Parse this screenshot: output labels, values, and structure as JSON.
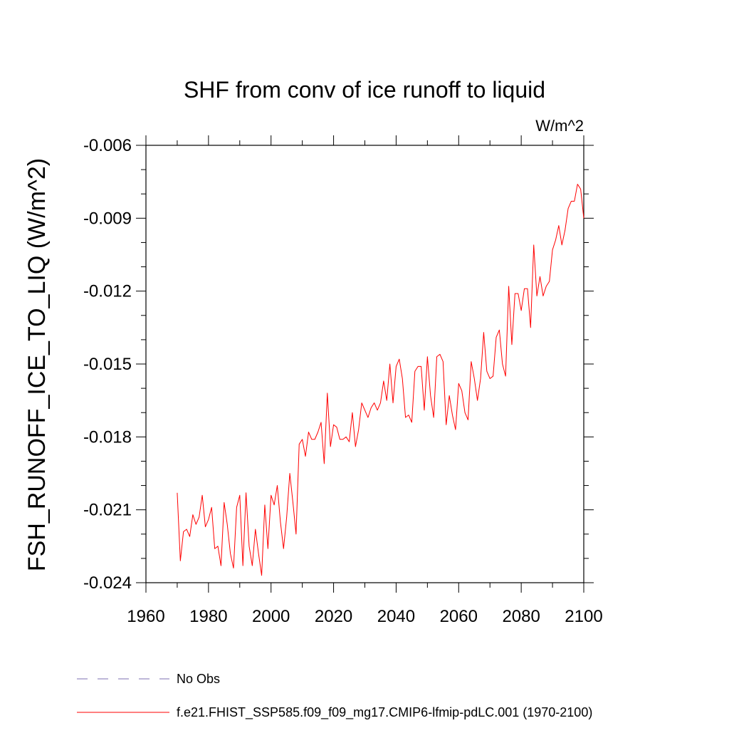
{
  "chart_data": {
    "type": "line",
    "title": "SHF from conv of ice runoff to liquid",
    "units": "W/m^2",
    "xlabel": "",
    "ylabel": "FSH_RUNOFF_ICE_TO_LIQ  (W/m^2)",
    "xlim": [
      1960,
      2100
    ],
    "ylim": [
      -0.024,
      -0.006
    ],
    "x_ticks": [
      1960,
      1980,
      2000,
      2020,
      2040,
      2060,
      2080,
      2100
    ],
    "x_tick_labels": [
      "1960",
      "1980",
      "2000",
      "2020",
      "2040",
      "2060",
      "2080",
      "2100"
    ],
    "y_ticks": [
      -0.024,
      -0.021,
      -0.018,
      -0.015,
      -0.012,
      -0.009,
      -0.006
    ],
    "y_tick_labels": [
      "-0.024",
      "-0.021",
      "-0.018",
      "-0.015",
      "-0.012",
      "-0.009",
      "-0.006"
    ],
    "grid": false,
    "legend_position": "bottom-left",
    "series": [
      {
        "name": "f.e21.FHIST_SSP585.f09_f09_mg17.CMIP6-lfmip-pdLC.001 (1970-2100)",
        "color": "#ff0000",
        "style": "solid",
        "x_start": 1970,
        "x_step": 1,
        "values": [
          -0.0203,
          -0.0231,
          -0.0219,
          -0.0218,
          -0.0221,
          -0.0212,
          -0.0216,
          -0.0213,
          -0.0204,
          -0.0217,
          -0.0214,
          -0.0209,
          -0.0226,
          -0.0225,
          -0.0233,
          -0.0207,
          -0.0216,
          -0.0228,
          -0.0234,
          -0.0209,
          -0.0204,
          -0.0233,
          -0.0203,
          -0.0225,
          -0.0233,
          -0.0218,
          -0.0228,
          -0.0237,
          -0.0208,
          -0.0226,
          -0.0204,
          -0.0208,
          -0.02,
          -0.0215,
          -0.0226,
          -0.0213,
          -0.0195,
          -0.0207,
          -0.022,
          -0.0183,
          -0.0181,
          -0.0188,
          -0.0178,
          -0.0181,
          -0.0181,
          -0.0178,
          -0.0174,
          -0.0191,
          -0.0162,
          -0.0184,
          -0.0175,
          -0.0176,
          -0.0181,
          -0.0181,
          -0.018,
          -0.0182,
          -0.017,
          -0.0184,
          -0.0177,
          -0.0166,
          -0.0169,
          -0.0172,
          -0.0168,
          -0.0166,
          -0.0169,
          -0.0166,
          -0.0157,
          -0.0165,
          -0.015,
          -0.0166,
          -0.0151,
          -0.0148,
          -0.0156,
          -0.0172,
          -0.0171,
          -0.0174,
          -0.0153,
          -0.0151,
          -0.0151,
          -0.0169,
          -0.0147,
          -0.0163,
          -0.0172,
          -0.0147,
          -0.0146,
          -0.0149,
          -0.0175,
          -0.0163,
          -0.0171,
          -0.0177,
          -0.0158,
          -0.0161,
          -0.017,
          -0.0173,
          -0.0149,
          -0.0156,
          -0.0165,
          -0.0156,
          -0.0137,
          -0.0153,
          -0.0156,
          -0.0155,
          -0.0139,
          -0.0136,
          -0.015,
          -0.0155,
          -0.0118,
          -0.0142,
          -0.0121,
          -0.0121,
          -0.0128,
          -0.0119,
          -0.0119,
          -0.0135,
          -0.0101,
          -0.0122,
          -0.0114,
          -0.0122,
          -0.0118,
          -0.0116,
          -0.0103,
          -0.0099,
          -0.0093,
          -0.0101,
          -0.0095,
          -0.0086,
          -0.0083,
          -0.0083,
          -0.0076,
          -0.0078,
          -0.009
        ]
      },
      {
        "name": "No Obs",
        "color": "#7b6fb0",
        "style": "dashed",
        "values": []
      }
    ]
  }
}
